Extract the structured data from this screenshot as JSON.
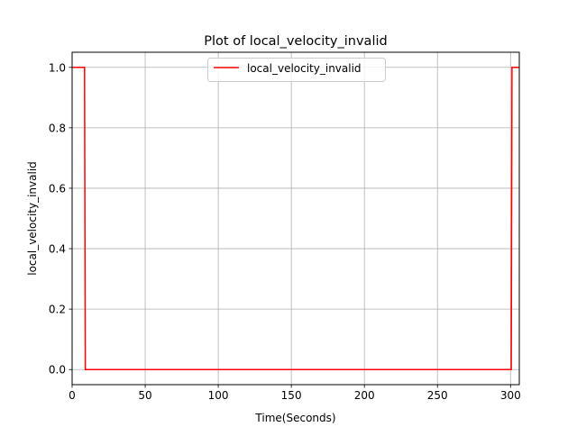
{
  "chart_data": {
    "type": "line",
    "title": "Plot of local_velocity_invalid",
    "xlabel": "Time(Seconds)",
    "ylabel": "local_velocity_invalid",
    "xlim": [
      0,
      306
    ],
    "ylim": [
      -0.05,
      1.05
    ],
    "xticks": [
      0,
      50,
      100,
      150,
      200,
      250,
      300
    ],
    "xtick_labels": [
      "0",
      "50",
      "100",
      "150",
      "200",
      "250",
      "300"
    ],
    "yticks": [
      0.0,
      0.2,
      0.4,
      0.6,
      0.8,
      1.0
    ],
    "ytick_labels": [
      "0.0",
      "0.2",
      "0.4",
      "0.6",
      "0.8",
      "1.0"
    ],
    "grid": true,
    "legend_position": "top-center",
    "series": [
      {
        "name": "local_velocity_invalid",
        "color": "#ff0000",
        "step": true,
        "x": [
          0,
          8.5,
          9,
          300.5,
          301,
          306
        ],
        "y": [
          1,
          1,
          0,
          0,
          1,
          1
        ]
      }
    ]
  }
}
